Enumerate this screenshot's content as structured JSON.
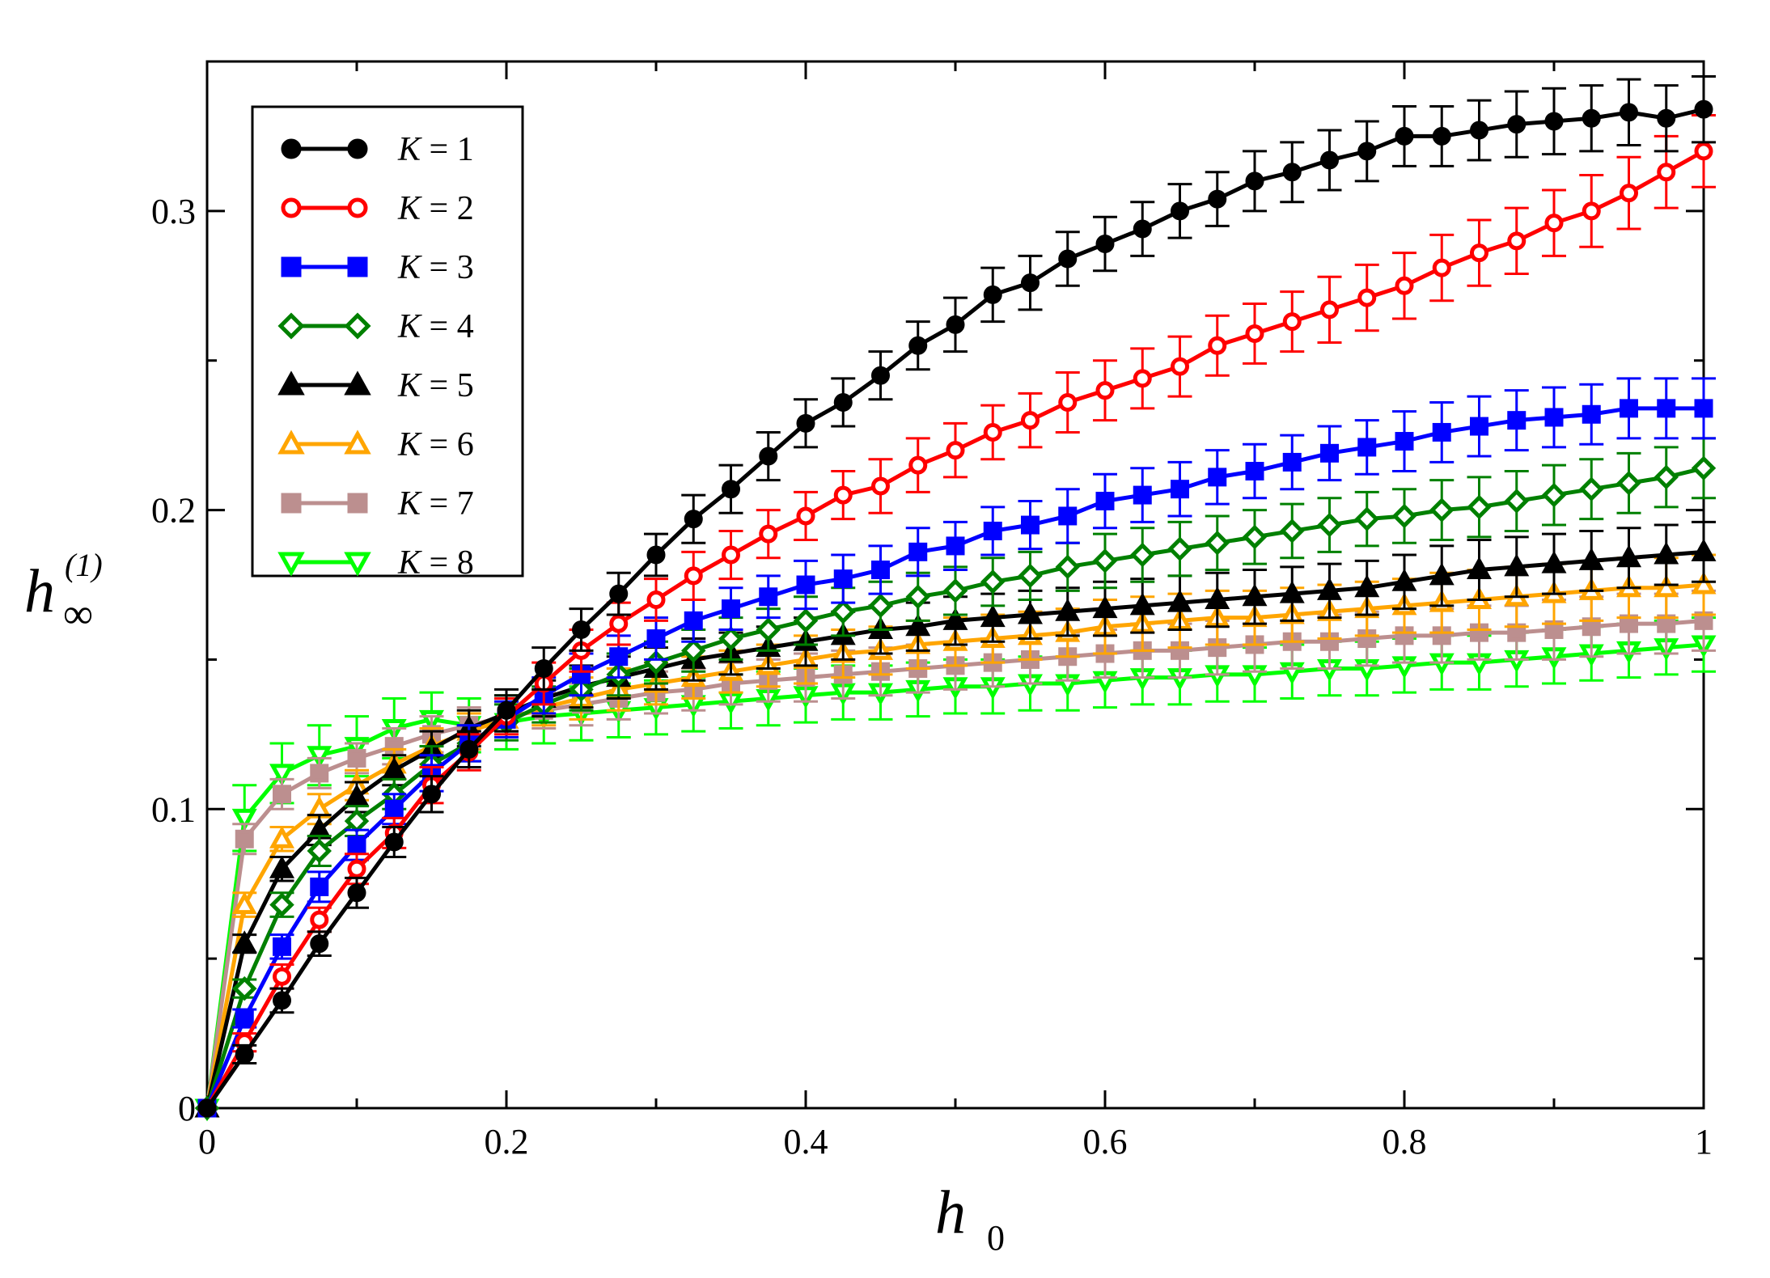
{
  "chart_data": {
    "type": "line",
    "xlabel": "h",
    "xlabel_sub": "0",
    "ylabel": "h",
    "ylabel_sub": "∞",
    "ylabel_sup": "(1)",
    "xlim": [
      0,
      1
    ],
    "ylim": [
      0,
      0.35
    ],
    "xticks": [
      0,
      0.2,
      0.4,
      0.6,
      0.8,
      1
    ],
    "xtick_labels": [
      "0",
      "0.2",
      "0.4",
      "0.6",
      "0.8",
      "1"
    ],
    "yticks": [
      0,
      0.1,
      0.2,
      0.3
    ],
    "ytick_labels": [
      "0",
      "0.1",
      "0.2",
      "0.3"
    ],
    "legend_position": "top-left",
    "x": [
      0,
      0.025,
      0.05,
      0.075,
      0.1,
      0.125,
      0.15,
      0.175,
      0.2,
      0.225,
      0.25,
      0.275,
      0.3,
      0.325,
      0.35,
      0.375,
      0.4,
      0.425,
      0.45,
      0.475,
      0.5,
      0.525,
      0.55,
      0.575,
      0.6,
      0.625,
      0.65,
      0.675,
      0.7,
      0.725,
      0.75,
      0.775,
      0.8,
      0.825,
      0.85,
      0.875,
      0.9,
      0.925,
      0.95,
      0.975,
      1.0
    ],
    "series": [
      {
        "name": "K = 1",
        "k": "1",
        "color": "#000000",
        "marker": "circle",
        "filled": true,
        "values": [
          0,
          0.018,
          0.036,
          0.055,
          0.072,
          0.089,
          0.105,
          0.12,
          0.133,
          0.147,
          0.16,
          0.172,
          0.185,
          0.197,
          0.207,
          0.218,
          0.229,
          0.236,
          0.245,
          0.255,
          0.262,
          0.272,
          0.276,
          0.284,
          0.289,
          0.294,
          0.3,
          0.304,
          0.31,
          0.313,
          0.317,
          0.32,
          0.325,
          0.325,
          0.327,
          0.329,
          0.33,
          0.331,
          0.333,
          0.331,
          0.334
        ],
        "errors": [
          0,
          0.003,
          0.004,
          0.004,
          0.005,
          0.005,
          0.006,
          0.006,
          0.007,
          0.007,
          0.007,
          0.007,
          0.007,
          0.008,
          0.008,
          0.008,
          0.008,
          0.008,
          0.008,
          0.008,
          0.009,
          0.009,
          0.009,
          0.009,
          0.009,
          0.009,
          0.009,
          0.009,
          0.01,
          0.01,
          0.01,
          0.01,
          0.01,
          0.01,
          0.01,
          0.011,
          0.011,
          0.011,
          0.011,
          0.011,
          0.011
        ]
      },
      {
        "name": "K = 2",
        "k": "2",
        "color": "#ff0000",
        "marker": "circle",
        "filled": false,
        "values": [
          0,
          0.022,
          0.044,
          0.063,
          0.08,
          0.092,
          0.108,
          0.119,
          0.131,
          0.142,
          0.153,
          0.162,
          0.17,
          0.178,
          0.185,
          0.192,
          0.198,
          0.205,
          0.208,
          0.215,
          0.22,
          0.226,
          0.23,
          0.236,
          0.24,
          0.244,
          0.248,
          0.255,
          0.259,
          0.263,
          0.267,
          0.271,
          0.275,
          0.281,
          0.286,
          0.29,
          0.296,
          0.3,
          0.306,
          0.313,
          0.32
        ],
        "errors": [
          0,
          0.003,
          0.004,
          0.004,
          0.005,
          0.005,
          0.006,
          0.006,
          0.006,
          0.007,
          0.007,
          0.007,
          0.007,
          0.008,
          0.008,
          0.008,
          0.008,
          0.008,
          0.009,
          0.009,
          0.009,
          0.009,
          0.009,
          0.01,
          0.01,
          0.01,
          0.01,
          0.01,
          0.01,
          0.01,
          0.011,
          0.011,
          0.011,
          0.011,
          0.011,
          0.011,
          0.011,
          0.012,
          0.012,
          0.012,
          0.012
        ]
      },
      {
        "name": "K = 3",
        "k": "3",
        "color": "#0000ff",
        "marker": "square",
        "filled": true,
        "values": [
          0,
          0.03,
          0.054,
          0.074,
          0.088,
          0.1,
          0.112,
          0.122,
          0.13,
          0.138,
          0.145,
          0.151,
          0.157,
          0.163,
          0.167,
          0.171,
          0.175,
          0.177,
          0.18,
          0.186,
          0.188,
          0.193,
          0.195,
          0.198,
          0.203,
          0.205,
          0.207,
          0.211,
          0.213,
          0.216,
          0.219,
          0.221,
          0.223,
          0.226,
          0.228,
          0.23,
          0.231,
          0.232,
          0.234,
          0.234,
          0.234
        ],
        "errors": [
          0,
          0.003,
          0.004,
          0.005,
          0.005,
          0.005,
          0.006,
          0.006,
          0.006,
          0.006,
          0.007,
          0.007,
          0.007,
          0.007,
          0.007,
          0.007,
          0.008,
          0.008,
          0.008,
          0.008,
          0.008,
          0.008,
          0.008,
          0.009,
          0.009,
          0.009,
          0.009,
          0.009,
          0.009,
          0.009,
          0.009,
          0.009,
          0.01,
          0.01,
          0.01,
          0.01,
          0.01,
          0.01,
          0.01,
          0.01,
          0.01
        ]
      },
      {
        "name": "K = 4",
        "k": "4",
        "color": "#008000",
        "marker": "diamond",
        "filled": false,
        "values": [
          0,
          0.04,
          0.068,
          0.086,
          0.096,
          0.105,
          0.115,
          0.122,
          0.129,
          0.135,
          0.14,
          0.145,
          0.149,
          0.153,
          0.157,
          0.16,
          0.163,
          0.166,
          0.168,
          0.171,
          0.173,
          0.176,
          0.178,
          0.181,
          0.183,
          0.185,
          0.187,
          0.189,
          0.191,
          0.193,
          0.195,
          0.197,
          0.198,
          0.2,
          0.201,
          0.203,
          0.205,
          0.207,
          0.209,
          0.211,
          0.214
        ],
        "errors": [
          0,
          0.003,
          0.004,
          0.005,
          0.005,
          0.005,
          0.006,
          0.006,
          0.006,
          0.006,
          0.007,
          0.007,
          0.007,
          0.007,
          0.007,
          0.007,
          0.008,
          0.008,
          0.008,
          0.008,
          0.008,
          0.008,
          0.008,
          0.008,
          0.009,
          0.009,
          0.009,
          0.009,
          0.009,
          0.009,
          0.009,
          0.009,
          0.009,
          0.01,
          0.01,
          0.01,
          0.01,
          0.01,
          0.01,
          0.01,
          0.01
        ]
      },
      {
        "name": "K = 5",
        "k": "5",
        "color": "#000000",
        "marker": "triangle-up",
        "filled": true,
        "values": [
          0,
          0.055,
          0.08,
          0.093,
          0.104,
          0.113,
          0.12,
          0.127,
          0.132,
          0.137,
          0.141,
          0.144,
          0.147,
          0.15,
          0.152,
          0.154,
          0.156,
          0.158,
          0.16,
          0.161,
          0.163,
          0.164,
          0.165,
          0.166,
          0.167,
          0.168,
          0.169,
          0.17,
          0.171,
          0.172,
          0.173,
          0.174,
          0.176,
          0.178,
          0.18,
          0.181,
          0.182,
          0.183,
          0.184,
          0.185,
          0.186
        ],
        "errors": [
          0,
          0.003,
          0.004,
          0.005,
          0.005,
          0.005,
          0.006,
          0.006,
          0.006,
          0.006,
          0.007,
          0.007,
          0.007,
          0.007,
          0.007,
          0.007,
          0.008,
          0.008,
          0.008,
          0.008,
          0.008,
          0.008,
          0.008,
          0.008,
          0.009,
          0.009,
          0.009,
          0.009,
          0.009,
          0.009,
          0.009,
          0.009,
          0.009,
          0.01,
          0.01,
          0.01,
          0.01,
          0.01,
          0.01,
          0.01,
          0.01
        ]
      },
      {
        "name": "K = 6",
        "k": "6",
        "color": "#ffa500",
        "marker": "triangle-up",
        "filled": false,
        "values": [
          0,
          0.068,
          0.09,
          0.1,
          0.108,
          0.115,
          0.121,
          0.126,
          0.13,
          0.134,
          0.137,
          0.14,
          0.142,
          0.144,
          0.146,
          0.148,
          0.15,
          0.152,
          0.153,
          0.155,
          0.156,
          0.157,
          0.158,
          0.159,
          0.161,
          0.162,
          0.163,
          0.164,
          0.164,
          0.165,
          0.166,
          0.167,
          0.168,
          0.169,
          0.17,
          0.171,
          0.172,
          0.173,
          0.174,
          0.174,
          0.175
        ],
        "errors": [
          0,
          0.004,
          0.004,
          0.005,
          0.005,
          0.005,
          0.006,
          0.006,
          0.006,
          0.006,
          0.007,
          0.007,
          0.007,
          0.007,
          0.007,
          0.007,
          0.008,
          0.008,
          0.008,
          0.008,
          0.008,
          0.008,
          0.008,
          0.008,
          0.009,
          0.009,
          0.009,
          0.009,
          0.009,
          0.009,
          0.009,
          0.009,
          0.009,
          0.01,
          0.01,
          0.01,
          0.01,
          0.01,
          0.01,
          0.01,
          0.01
        ]
      },
      {
        "name": "K = 7",
        "k": "7",
        "color": "#bc8f8f",
        "marker": "square",
        "filled": true,
        "values": [
          0,
          0.09,
          0.105,
          0.112,
          0.117,
          0.121,
          0.125,
          0.128,
          0.131,
          0.133,
          0.135,
          0.137,
          0.139,
          0.14,
          0.142,
          0.143,
          0.144,
          0.145,
          0.146,
          0.147,
          0.148,
          0.149,
          0.15,
          0.151,
          0.152,
          0.153,
          0.153,
          0.154,
          0.155,
          0.156,
          0.156,
          0.157,
          0.158,
          0.158,
          0.159,
          0.159,
          0.16,
          0.161,
          0.162,
          0.162,
          0.163
        ],
        "errors": [
          0,
          0.005,
          0.005,
          0.005,
          0.005,
          0.006,
          0.006,
          0.006,
          0.006,
          0.006,
          0.007,
          0.007,
          0.007,
          0.007,
          0.007,
          0.007,
          0.008,
          0.008,
          0.008,
          0.008,
          0.008,
          0.008,
          0.008,
          0.008,
          0.008,
          0.009,
          0.009,
          0.009,
          0.009,
          0.009,
          0.009,
          0.009,
          0.009,
          0.009,
          0.009,
          0.009,
          0.01,
          0.01,
          0.01,
          0.01,
          0.01
        ]
      },
      {
        "name": "K = 8",
        "k": "8",
        "color": "#00ff00",
        "marker": "triangle-down",
        "filled": false,
        "values": [
          0,
          0.097,
          0.112,
          0.118,
          0.121,
          0.127,
          0.13,
          0.128,
          0.129,
          0.131,
          0.132,
          0.133,
          0.134,
          0.135,
          0.136,
          0.137,
          0.138,
          0.139,
          0.139,
          0.14,
          0.141,
          0.141,
          0.142,
          0.142,
          0.143,
          0.144,
          0.144,
          0.145,
          0.145,
          0.146,
          0.147,
          0.147,
          0.148,
          0.149,
          0.149,
          0.15,
          0.151,
          0.152,
          0.153,
          0.154,
          0.155
        ],
        "errors": [
          0,
          0.011,
          0.01,
          0.01,
          0.01,
          0.01,
          0.009,
          0.009,
          0.009,
          0.009,
          0.009,
          0.009,
          0.009,
          0.009,
          0.009,
          0.009,
          0.009,
          0.009,
          0.009,
          0.009,
          0.009,
          0.009,
          0.009,
          0.009,
          0.009,
          0.009,
          0.009,
          0.009,
          0.009,
          0.009,
          0.009,
          0.009,
          0.009,
          0.009,
          0.009,
          0.009,
          0.009,
          0.009,
          0.009,
          0.009,
          0.009
        ]
      }
    ]
  }
}
